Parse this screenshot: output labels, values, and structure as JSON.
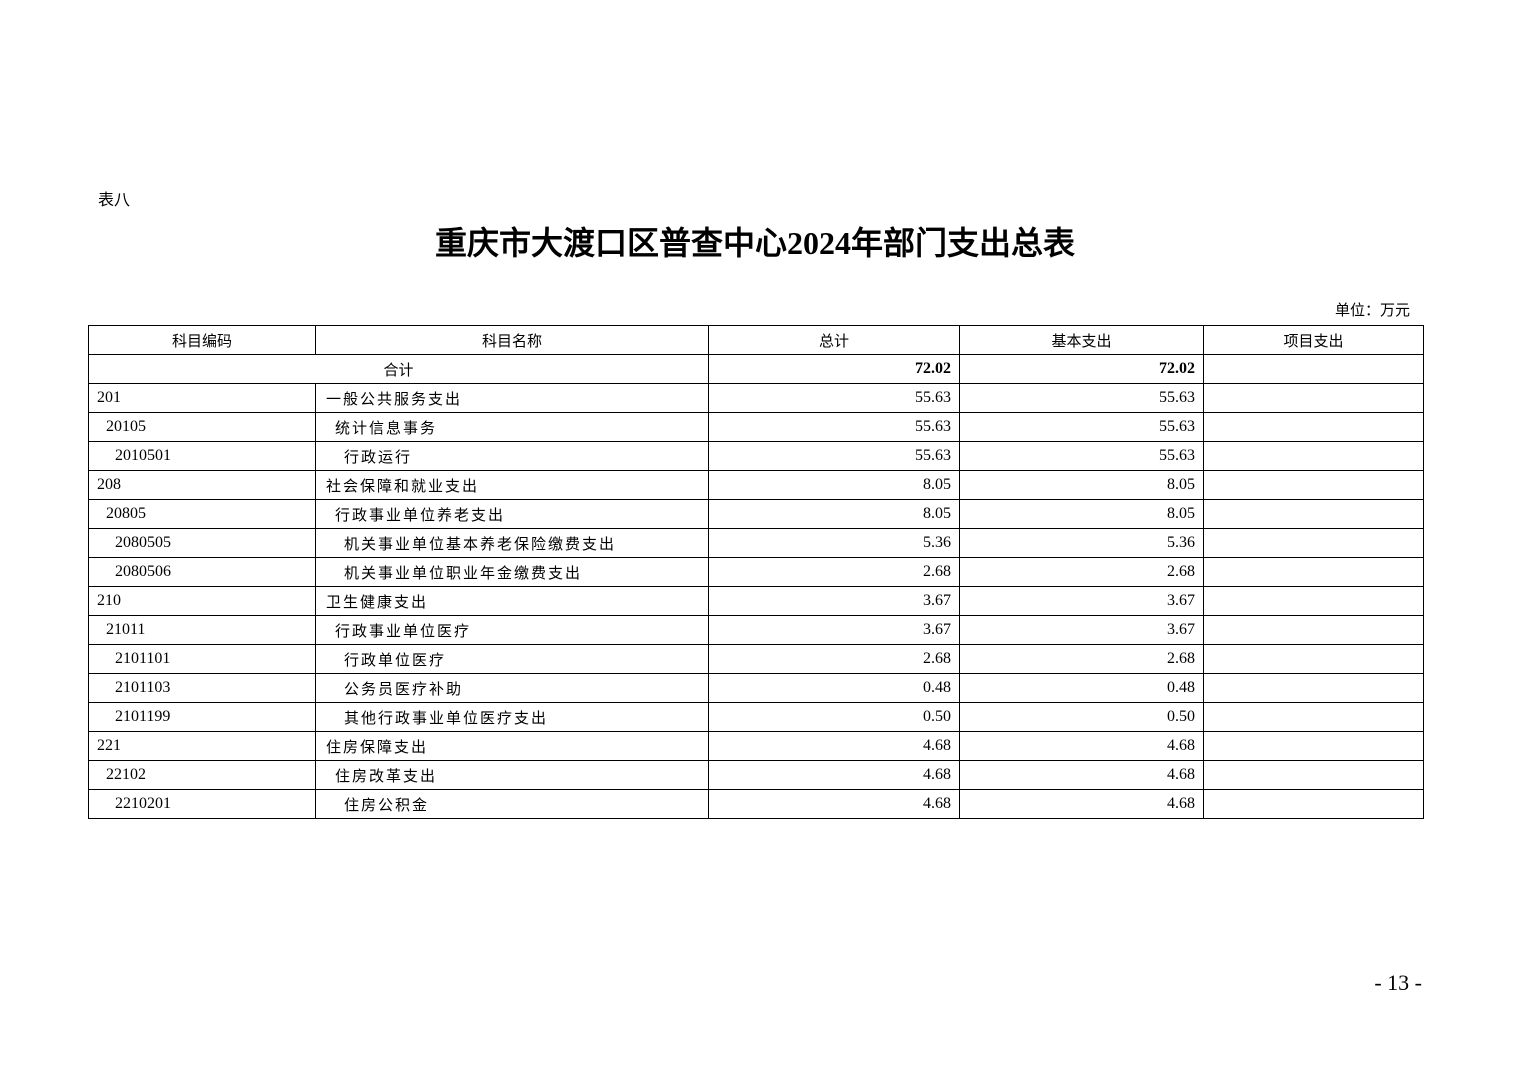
{
  "doc": {
    "label": "表八",
    "title": "重庆市大渡口区普查中心2024年部门支出总表",
    "unit": "单位：万元",
    "page_number": "- 13 -"
  },
  "table": {
    "headers": [
      "科目编码",
      "科目名称",
      "总计",
      "基本支出",
      "项目支出"
    ],
    "total": {
      "label": "合计",
      "total": "72.02",
      "basic": "72.02",
      "project": ""
    },
    "rows": [
      {
        "code": "201",
        "name": "一般公共服务支出",
        "level": 0,
        "total": "55.63",
        "basic": "55.63",
        "project": ""
      },
      {
        "code": "20105",
        "name": "统计信息事务",
        "level": 1,
        "total": "55.63",
        "basic": "55.63",
        "project": ""
      },
      {
        "code": "2010501",
        "name": "行政运行",
        "level": 2,
        "total": "55.63",
        "basic": "55.63",
        "project": ""
      },
      {
        "code": "208",
        "name": "社会保障和就业支出",
        "level": 0,
        "total": "8.05",
        "basic": "8.05",
        "project": ""
      },
      {
        "code": "20805",
        "name": "行政事业单位养老支出",
        "level": 1,
        "total": "8.05",
        "basic": "8.05",
        "project": ""
      },
      {
        "code": "2080505",
        "name": "机关事业单位基本养老保险缴费支出",
        "level": 2,
        "total": "5.36",
        "basic": "5.36",
        "project": ""
      },
      {
        "code": "2080506",
        "name": "机关事业单位职业年金缴费支出",
        "level": 2,
        "total": "2.68",
        "basic": "2.68",
        "project": ""
      },
      {
        "code": "210",
        "name": "卫生健康支出",
        "level": 0,
        "total": "3.67",
        "basic": "3.67",
        "project": ""
      },
      {
        "code": "21011",
        "name": "行政事业单位医疗",
        "level": 1,
        "total": "3.67",
        "basic": "3.67",
        "project": ""
      },
      {
        "code": "2101101",
        "name": "行政单位医疗",
        "level": 2,
        "total": "2.68",
        "basic": "2.68",
        "project": ""
      },
      {
        "code": "2101103",
        "name": "公务员医疗补助",
        "level": 2,
        "total": "0.48",
        "basic": "0.48",
        "project": ""
      },
      {
        "code": "2101199",
        "name": "其他行政事业单位医疗支出",
        "level": 2,
        "total": "0.50",
        "basic": "0.50",
        "project": ""
      },
      {
        "code": "221",
        "name": "住房保障支出",
        "level": 0,
        "total": "4.68",
        "basic": "4.68",
        "project": ""
      },
      {
        "code": "22102",
        "name": "住房改革支出",
        "level": 1,
        "total": "4.68",
        "basic": "4.68",
        "project": ""
      },
      {
        "code": "2210201",
        "name": "住房公积金",
        "level": 2,
        "total": "4.68",
        "basic": "4.68",
        "project": ""
      }
    ]
  }
}
